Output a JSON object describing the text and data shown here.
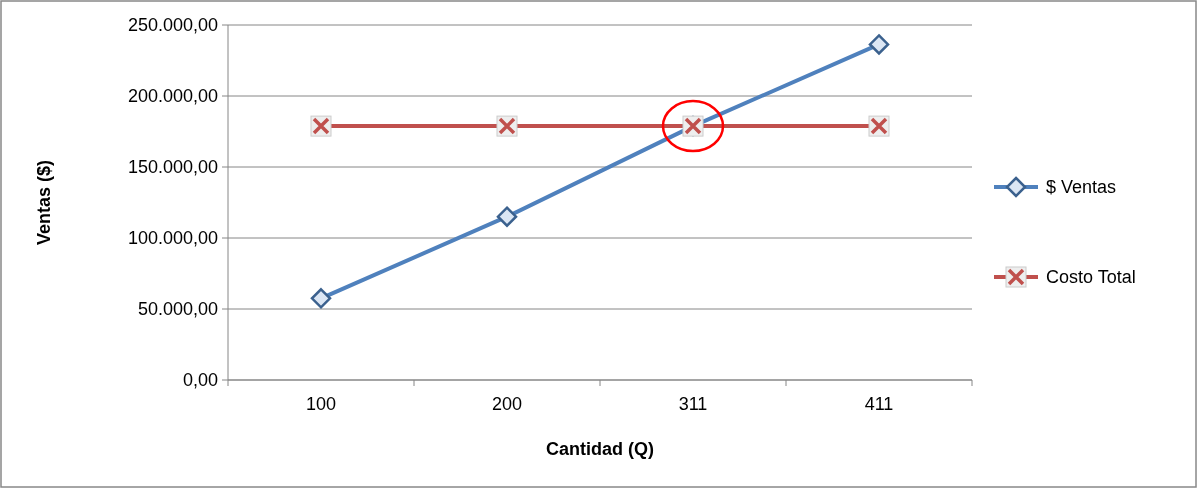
{
  "chart_data": {
    "type": "line",
    "xlabel": "Cantidad (Q)",
    "ylabel": "Ventas ($)",
    "categories": [
      "100",
      "200",
      "311",
      "411"
    ],
    "series": [
      {
        "name": "$ Ventas",
        "color": "#4f81bd",
        "values": [
          57500,
          115000,
          178800,
          236300
        ],
        "marker": "diamond"
      },
      {
        "name": "Costo Total",
        "color": "#c0504d",
        "values": [
          178800,
          178800,
          178800,
          178800
        ],
        "marker": "cross"
      }
    ],
    "ylim": [
      0,
      250000
    ],
    "yticks": [
      {
        "value": 0,
        "label": "0,00"
      },
      {
        "value": 50000,
        "label": "50.000,00"
      },
      {
        "value": 100000,
        "label": "100.000,00"
      },
      {
        "value": 150000,
        "label": "150.000,00"
      },
      {
        "value": 200000,
        "label": "200.000,00"
      },
      {
        "value": 250000,
        "label": "250.000,00"
      }
    ],
    "grid": "y",
    "legend": "right",
    "line_style": "solid"
  }
}
